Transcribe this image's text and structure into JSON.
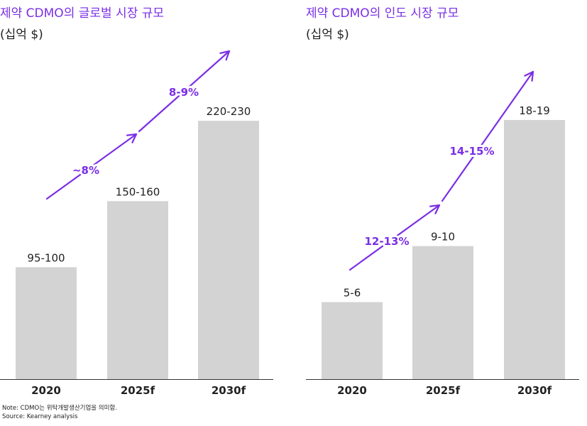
{
  "colors": {
    "bar": "#d3d3d3",
    "accent": "#7a2ee6",
    "text": "#222222",
    "axis": "#333333"
  },
  "chart_data": [
    {
      "type": "bar",
      "title": "제약 CDMO의 글로벌 시장 규모",
      "ylabel": "(십억 $)",
      "categories": [
        "2020",
        "2025f",
        "2030f"
      ],
      "value_labels": [
        "95-100",
        "150-160",
        "220-230"
      ],
      "values": [
        97.5,
        155,
        225
      ],
      "ylim": [
        0,
        240
      ],
      "growth_labels": [
        "~8%",
        "8-9%"
      ],
      "grid": false,
      "legend": "none"
    },
    {
      "type": "bar",
      "title": "제약 CDMO의 인도 시장 규모",
      "ylabel": "(십억 $)",
      "categories": [
        "2020",
        "2025f",
        "2030f"
      ],
      "value_labels": [
        "5-6",
        "9-10",
        "18-19"
      ],
      "values": [
        5.5,
        9.5,
        18.5
      ],
      "ylim": [
        0,
        20
      ],
      "growth_labels": [
        "12-13%",
        "14-15%"
      ],
      "grid": false,
      "legend": "none"
    }
  ],
  "footnotes": {
    "note": "Note: CDMO는 위탁개발생산기업을 의미함.",
    "source": "Source: Kearney analysis"
  }
}
